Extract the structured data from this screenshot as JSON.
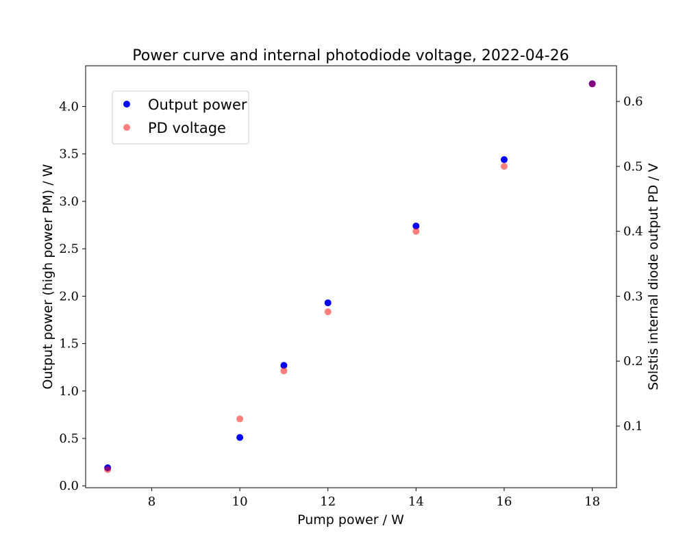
{
  "chart_data": {
    "type": "scatter",
    "title": "Power curve and internal photodiode voltage, 2022-04-26",
    "xlabel": "Pump power / W",
    "ylabel_left": "Output power (high power PM) / W",
    "ylabel_right": "Solstis internal diode output PD / V",
    "xlim": [
      6.5,
      18.55
    ],
    "ylim_left": [
      -0.02,
      4.43
    ],
    "ylim_right": [
      0.005,
      0.655
    ],
    "x_ticks": [
      8,
      10,
      12,
      14,
      16,
      18
    ],
    "y_left_ticks": [
      0.0,
      0.5,
      1.0,
      1.5,
      2.0,
      2.5,
      3.0,
      3.5,
      4.0
    ],
    "y_right_ticks": [
      0.1,
      0.2,
      0.3,
      0.4,
      0.5,
      0.6
    ],
    "grid": false,
    "legend_position": "upper-left",
    "series": [
      {
        "name": "Output power",
        "axis": "left",
        "color": "#0000ff",
        "x": [
          7,
          10,
          11,
          12,
          14,
          16,
          18
        ],
        "y": [
          0.19,
          0.51,
          1.27,
          1.93,
          2.74,
          3.44,
          4.24
        ]
      },
      {
        "name": "PD voltage",
        "axis": "right",
        "color": "#ff0000",
        "opacity": 0.5,
        "x": [
          7,
          10,
          11,
          12,
          14,
          16,
          18
        ],
        "y": [
          0.033,
          0.111,
          0.185,
          0.276,
          0.4,
          0.5,
          0.627
        ]
      }
    ]
  }
}
